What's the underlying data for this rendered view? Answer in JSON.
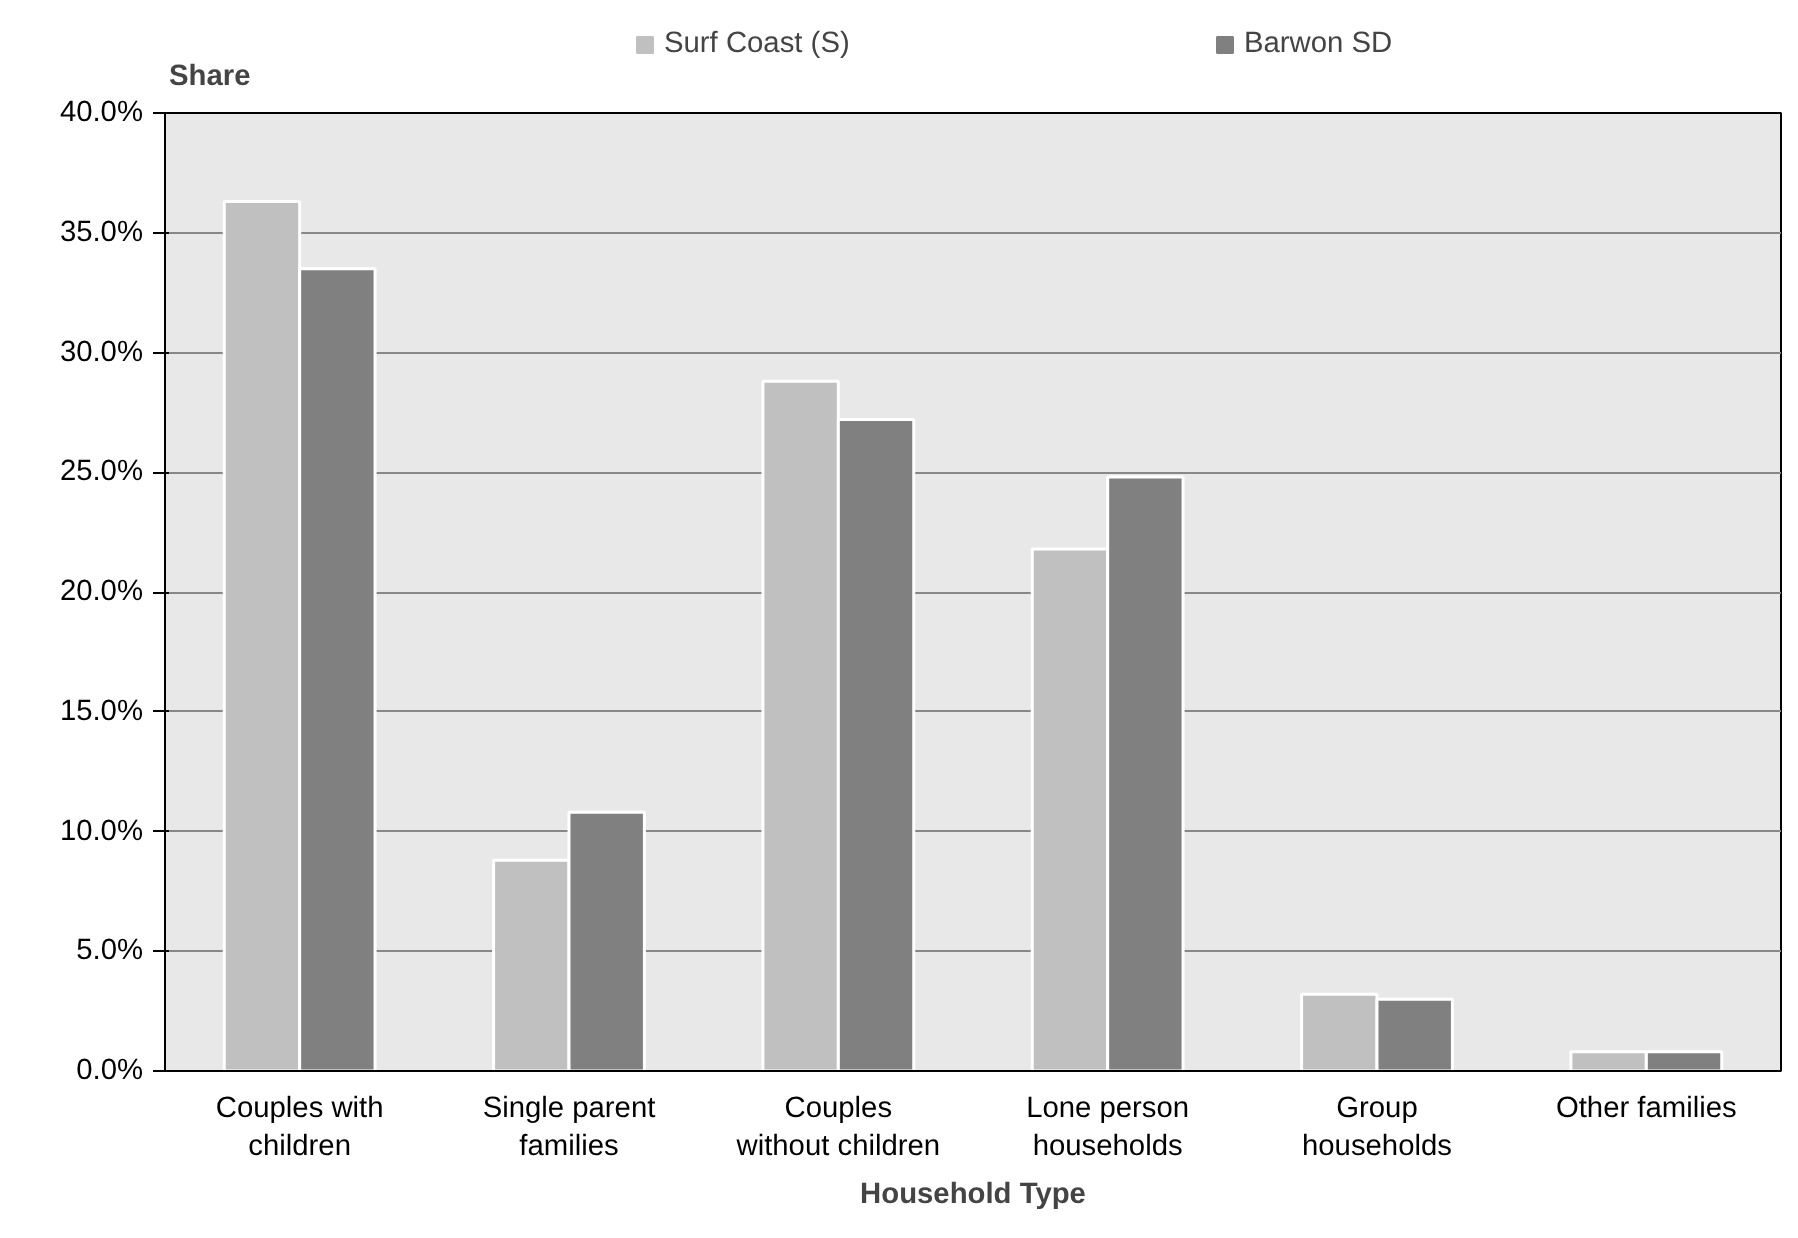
{
  "chart_data": {
    "type": "bar",
    "xlabel": "Household Type",
    "ylabel": "Share",
    "categories": [
      "Couples with\nchildren",
      "Single parent\nfamilies",
      "Couples\nwithout children",
      "Lone person\nhouseholds",
      "Group\nhouseholds",
      "Other families"
    ],
    "series": [
      {
        "name": "Surf Coast (S)",
        "color": "#c0c0c0",
        "values": [
          36.3,
          8.8,
          28.8,
          21.8,
          3.2,
          0.8
        ]
      },
      {
        "name": "Barwon SD",
        "color": "#808080",
        "values": [
          33.5,
          10.8,
          27.2,
          24.8,
          3.0,
          0.8
        ]
      }
    ],
    "ylim": [
      0,
      40
    ],
    "yticks": [
      {
        "value": 0,
        "label": "0.0%"
      },
      {
        "value": 5,
        "label": "5.0%"
      },
      {
        "value": 10,
        "label": "10.0%"
      },
      {
        "value": 15,
        "label": "15.0%"
      },
      {
        "value": 20,
        "label": "20.0%"
      },
      {
        "value": 25,
        "label": "25.0%"
      },
      {
        "value": 30,
        "label": "30.0%"
      },
      {
        "value": 35,
        "label": "35.0%"
      },
      {
        "value": 40,
        "label": "40.0%"
      }
    ],
    "grid": "y",
    "legend": "top"
  }
}
